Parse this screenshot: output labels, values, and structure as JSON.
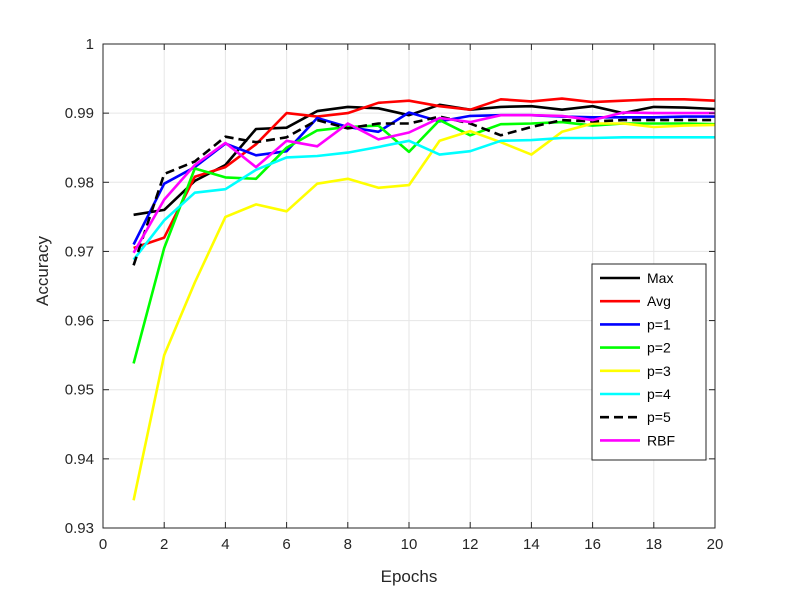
{
  "chart_data": {
    "type": "line",
    "title": "",
    "xlabel": "Epochs",
    "ylabel": "Accuracy",
    "xlim": [
      0,
      20
    ],
    "ylim": [
      0.93,
      1
    ],
    "xticks": [
      0,
      2,
      4,
      6,
      8,
      10,
      12,
      14,
      16,
      18,
      20
    ],
    "xtick_labels": [
      "0",
      "2",
      "4",
      "6",
      "8",
      "10",
      "12",
      "14",
      "16",
      "18",
      "20"
    ],
    "yticks": [
      0.93,
      0.94,
      0.95,
      0.96,
      0.97,
      0.98,
      0.99,
      1
    ],
    "ytick_labels": [
      "0.93",
      "0.94",
      "0.95",
      "0.96",
      "0.97",
      "0.98",
      "0.99",
      "1"
    ],
    "grid": true,
    "legend_position": "right",
    "x": [
      1,
      2,
      3,
      4,
      5,
      6,
      7,
      8,
      9,
      10,
      11,
      12,
      13,
      14,
      15,
      16,
      17,
      18,
      19,
      20
    ],
    "series": [
      {
        "name": "Max",
        "color": "#000000",
        "dash": "solid",
        "values": [
          0.9753,
          0.976,
          0.9802,
          0.9825,
          0.9877,
          0.9879,
          0.9903,
          0.9909,
          0.9907,
          0.9897,
          0.9912,
          0.9905,
          0.9909,
          0.991,
          0.9905,
          0.991,
          0.99,
          0.9909,
          0.9908,
          0.9906
        ]
      },
      {
        "name": "Avg",
        "color": "#ff0000",
        "dash": "solid",
        "values": [
          0.9705,
          0.972,
          0.9808,
          0.9822,
          0.9855,
          0.99,
          0.9895,
          0.99,
          0.9915,
          0.9918,
          0.991,
          0.9905,
          0.992,
          0.9917,
          0.9921,
          0.9916,
          0.9918,
          0.992,
          0.992,
          0.9918
        ]
      },
      {
        "name": "p=1",
        "color": "#0000ff",
        "dash": "solid",
        "values": [
          0.971,
          0.9798,
          0.9822,
          0.9856,
          0.9839,
          0.9845,
          0.9893,
          0.988,
          0.9873,
          0.9901,
          0.9888,
          0.9896,
          0.9897,
          0.9897,
          0.9895,
          0.9894,
          0.9894,
          0.9894,
          0.9895,
          0.9895
        ]
      },
      {
        "name": "p=2",
        "color": "#00ff00",
        "dash": "solid",
        "values": [
          0.9538,
          0.9705,
          0.982,
          0.9807,
          0.9805,
          0.985,
          0.9875,
          0.988,
          0.9882,
          0.9844,
          0.989,
          0.9868,
          0.9884,
          0.9885,
          0.9887,
          0.9882,
          0.9885,
          0.9885,
          0.9885,
          0.9884
        ]
      },
      {
        "name": "p=3",
        "color": "#ffff00",
        "dash": "solid",
        "values": [
          0.934,
          0.955,
          0.9655,
          0.975,
          0.9768,
          0.9758,
          0.9798,
          0.9805,
          0.9792,
          0.9796,
          0.986,
          0.9874,
          0.9858,
          0.984,
          0.9873,
          0.9885,
          0.9885,
          0.988,
          0.9882,
          0.9883
        ]
      },
      {
        "name": "p=4",
        "color": "#00ffff",
        "dash": "solid",
        "values": [
          0.9688,
          0.9745,
          0.9785,
          0.979,
          0.9818,
          0.9836,
          0.9838,
          0.9843,
          0.9851,
          0.986,
          0.984,
          0.9845,
          0.986,
          0.9861,
          0.9864,
          0.9864,
          0.9865,
          0.9865,
          0.9865,
          0.9865
        ]
      },
      {
        "name": "p=5",
        "color": "#000000",
        "dash": "dashed",
        "values": [
          0.968,
          0.9812,
          0.983,
          0.9866,
          0.9858,
          0.9865,
          0.989,
          0.9878,
          0.9885,
          0.9885,
          0.9895,
          0.9885,
          0.9868,
          0.988,
          0.989,
          0.9888,
          0.989,
          0.989,
          0.989,
          0.989
        ]
      },
      {
        "name": "RBF",
        "color": "#ff00ff",
        "dash": "solid",
        "values": [
          0.9698,
          0.9775,
          0.9825,
          0.9857,
          0.9822,
          0.986,
          0.9852,
          0.9885,
          0.9862,
          0.9872,
          0.9893,
          0.9887,
          0.9897,
          0.9897,
          0.9896,
          0.989,
          0.9901,
          0.99,
          0.99,
          0.99
        ]
      }
    ]
  }
}
